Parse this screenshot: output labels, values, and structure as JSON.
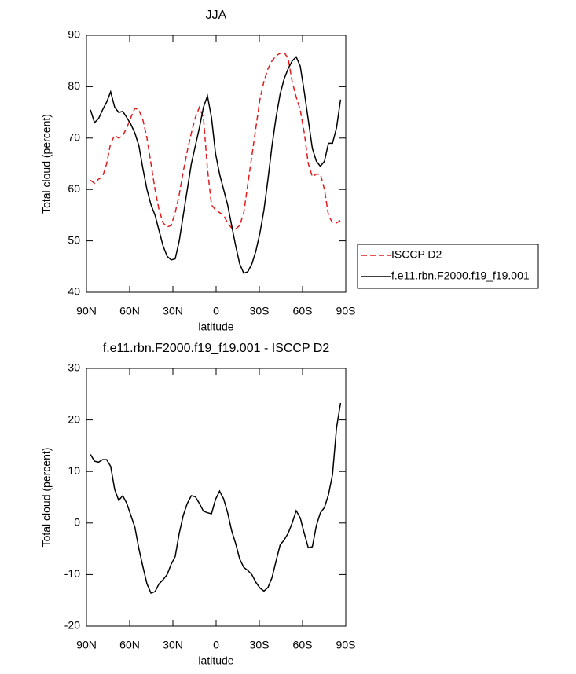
{
  "chart_data": [
    {
      "type": "line",
      "title": "JJA",
      "x_label": "latitude",
      "y_label": "Total cloud (percent)",
      "x": [
        87.2,
        84.4,
        81.6,
        78.8,
        76,
        73.2,
        70.4,
        67.6,
        64.8,
        62,
        59.2,
        56.4,
        53.6,
        50.8,
        48,
        45.2,
        42.4,
        39.6,
        36.8,
        34,
        31.2,
        28.4,
        25.6,
        22.8,
        20,
        17.2,
        14.4,
        11.6,
        8.8,
        6,
        3.2,
        0.4,
        -2.4,
        -5.2,
        -8,
        -10.8,
        -13.6,
        -16.4,
        -19.2,
        -22,
        -24.8,
        -27.6,
        -30.4,
        -33.2,
        -36,
        -38.8,
        -41.6,
        -44.4,
        -47.2,
        -50,
        -52.8,
        -55.6,
        -58.4,
        -61.2,
        -64,
        -66.8,
        -69.6,
        -72.4,
        -75.2,
        -78,
        -80.8,
        -83.6,
        -86.4
      ],
      "series": [
        {
          "name": "ISCCP D2",
          "color": "#e41a1c",
          "dashed": true,
          "values": [
            61.8,
            61.2,
            62,
            62.5,
            65,
            69,
            70.5,
            70,
            70.5,
            72,
            74,
            75.8,
            75.5,
            73.5,
            70,
            65,
            60,
            56,
            53.5,
            52.7,
            53,
            55.5,
            59,
            63.5,
            67.5,
            71,
            74,
            76,
            74,
            64,
            57,
            56,
            55.5,
            55,
            53.5,
            52.5,
            52.3,
            53,
            55.5,
            61,
            66.5,
            72,
            77.5,
            81,
            83.5,
            85,
            86,
            86.5,
            86.7,
            85.5,
            81,
            78,
            75.5,
            71,
            65,
            62.5,
            63,
            63,
            60,
            55,
            53.5,
            53.5,
            54
          ]
        },
        {
          "name": "f.e11.rbn.F2000.f19_f19.001",
          "color": "#000000",
          "dashed": false,
          "values": [
            75.5,
            73,
            73.8,
            75.5,
            77,
            79,
            76,
            75,
            75.2,
            74,
            72.7,
            71,
            68.5,
            64,
            60,
            57,
            55,
            52,
            49,
            47,
            46.3,
            46.5,
            50,
            55,
            60,
            65,
            68.5,
            72,
            76,
            78.2,
            74,
            67,
            63,
            60,
            57,
            53,
            49,
            45.5,
            43.7,
            44,
            45.5,
            48,
            51.5,
            56,
            62,
            68.5,
            74,
            78.5,
            81.5,
            83.5,
            85,
            85.8,
            84,
            79,
            73.5,
            68,
            65.5,
            64.5,
            65.5,
            69,
            69,
            72,
            77.5
          ]
        }
      ],
      "xlim": [
        90,
        -90
      ],
      "xticks": [
        {
          "value": 90,
          "label": "90N"
        },
        {
          "value": 60,
          "label": "60N"
        },
        {
          "value": 30,
          "label": "30N"
        },
        0,
        {
          "value": -30,
          "label": "30S"
        },
        {
          "value": -60,
          "label": "60S"
        },
        {
          "value": -90,
          "label": "90S"
        }
      ],
      "ylim": [
        40,
        90
      ],
      "yticks": [
        40,
        50,
        60,
        70,
        80,
        90
      ],
      "legend": "right"
    },
    {
      "type": "line",
      "title": "f.e11.rbn.F2000.f19_f19.001 - ISCCP D2",
      "x_label": "latitude",
      "y_label": "Total cloud (percent)",
      "x": [
        87.2,
        84.4,
        81.6,
        78.8,
        76,
        73.2,
        70.4,
        67.6,
        64.8,
        62,
        59.2,
        56.4,
        53.6,
        50.8,
        48,
        45.2,
        42.4,
        39.6,
        36.8,
        34,
        31.2,
        28.4,
        25.6,
        22.8,
        20,
        17.2,
        14.4,
        11.6,
        8.8,
        6,
        3.2,
        0.4,
        -2.4,
        -5.2,
        -8,
        -10.8,
        -13.6,
        -16.4,
        -19.2,
        -22,
        -24.8,
        -27.6,
        -30.4,
        -33.2,
        -36,
        -38.8,
        -41.6,
        -44.4,
        -47.2,
        -50,
        -52.8,
        -55.6,
        -58.4,
        -61.2,
        -64,
        -66.8,
        -69.6,
        -72.4,
        -75.2,
        -78,
        -80.8,
        -83.6,
        -86.4
      ],
      "series": [
        {
          "color": "#000000",
          "dashed": false,
          "values": [
            13.3,
            12,
            11.8,
            12.3,
            12.3,
            11,
            6.5,
            4.4,
            5.3,
            3.8,
            1.5,
            -0.8,
            -5,
            -8.5,
            -11.8,
            -13.6,
            -13.3,
            -11.8,
            -11,
            -10,
            -8,
            -6.5,
            -2,
            1.5,
            3.8,
            5.3,
            5.1,
            3.8,
            2.3,
            2,
            1.8,
            4.6,
            6.2,
            4.7,
            2,
            -1.5,
            -4,
            -7,
            -8.6,
            -9.2,
            -10,
            -11.5,
            -12.6,
            -13.2,
            -12.5,
            -10.6,
            -7.4,
            -4.3,
            -3.3,
            -2,
            0,
            2.4,
            1,
            -2,
            -4.8,
            -4.6,
            -0.5,
            2,
            3,
            5.5,
            9.4,
            18.5,
            23.3
          ]
        }
      ],
      "xlim": [
        90,
        -90
      ],
      "xticks": [
        {
          "value": 90,
          "label": "90N"
        },
        {
          "value": 60,
          "label": "60N"
        },
        {
          "value": 30,
          "label": "30N"
        },
        0,
        {
          "value": -30,
          "label": "30S"
        },
        {
          "value": -60,
          "label": "60S"
        },
        {
          "value": -90,
          "label": "90S"
        }
      ],
      "ylim": [
        -20,
        30
      ],
      "yticks": [
        -20,
        -10,
        0,
        10,
        20,
        30
      ]
    }
  ]
}
